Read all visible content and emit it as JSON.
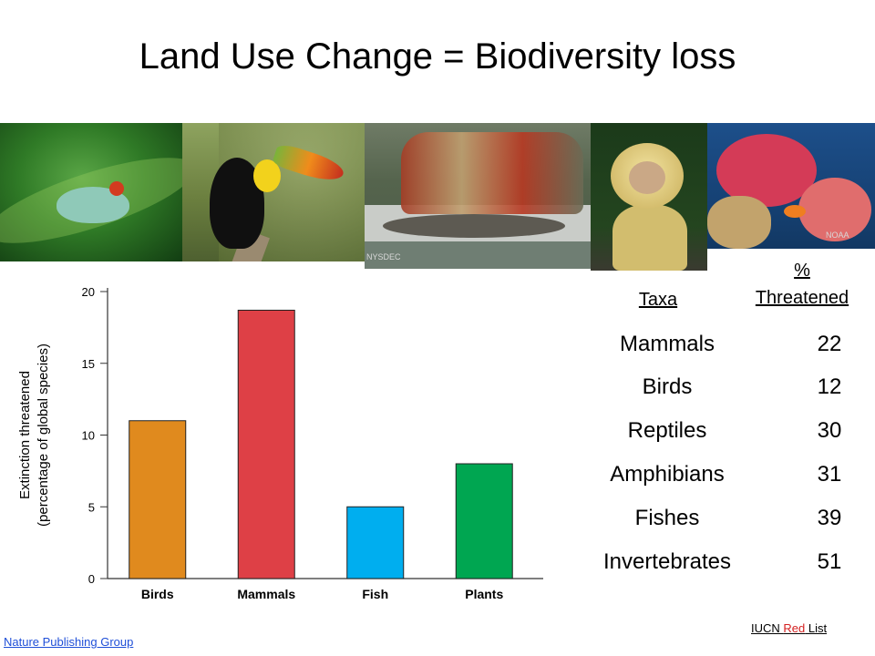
{
  "title": "Land Use Change = Biodiversity loss",
  "photos": {
    "frog": {
      "icon": "tree-frog-photo"
    },
    "toucan": {
      "icon": "toucan-photo"
    },
    "sturgeon": {
      "icon": "sturgeon-survey-photo",
      "credit": "NYSDEC"
    },
    "monkey": {
      "icon": "capuchin-monkey-photo"
    },
    "reef": {
      "icon": "coral-reef-photo",
      "credit": "NOAA"
    }
  },
  "chart_data": {
    "type": "bar",
    "categories": [
      "Birds",
      "Mammals",
      "Fish",
      "Plants"
    ],
    "values": [
      11,
      18.7,
      5,
      8
    ],
    "colors": [
      "#e08a1e",
      "#de4046",
      "#00aeef",
      "#00a651"
    ],
    "ylabel_line1": "Extinction threatened",
    "ylabel_line2": "(percentage of global species)",
    "ylim": [
      0,
      20
    ],
    "yticks": [
      0,
      5,
      10,
      15,
      20
    ]
  },
  "table": {
    "header_taxa": "Taxa",
    "header_pct_line1": "%",
    "header_pct_line2": "Threatened",
    "rows": [
      {
        "taxon": "Mammals",
        "pct": "22"
      },
      {
        "taxon": "Birds",
        "pct": "12"
      },
      {
        "taxon": "Reptiles",
        "pct": "30"
      },
      {
        "taxon": "Amphibians",
        "pct": "31"
      },
      {
        "taxon": "Fishes",
        "pct": "39"
      },
      {
        "taxon": "Invertebrates",
        "pct": "51"
      }
    ]
  },
  "sources": {
    "left": "Nature Publishing Group",
    "right_a": "IUCN ",
    "right_b": "Red",
    "right_c": " List"
  }
}
